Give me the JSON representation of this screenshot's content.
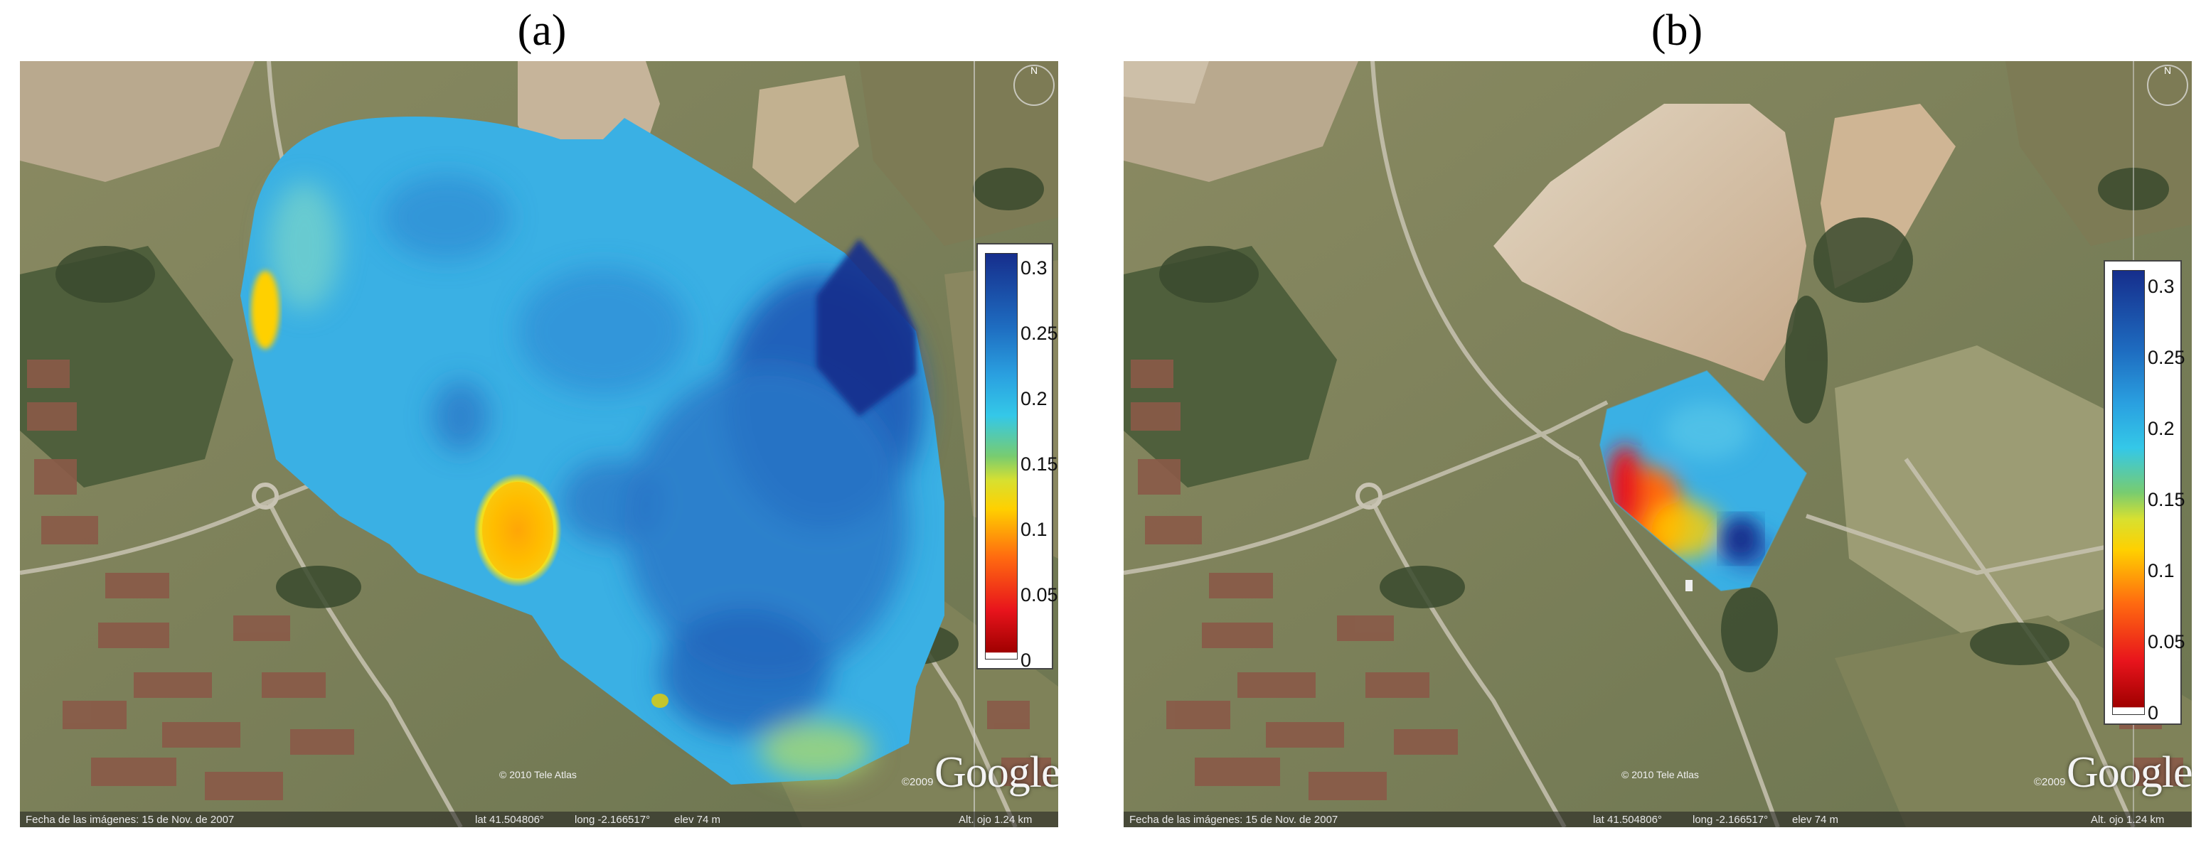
{
  "panels": [
    {
      "label": "(a)",
      "colorbar": {
        "ticks": [
          "0.3",
          "0.25",
          "0.2",
          "0.15",
          "0.1",
          "0.05",
          "0"
        ],
        "max": 0.33,
        "min": 0
      },
      "copyright_teleatlas": "© 2010 Tele Atlas",
      "google_year": "©2009",
      "google_logo": "Google",
      "status": {
        "image_date": "Fecha de las imágenes: 15 de Nov. de 2007",
        "lat": "lat  41.504806°",
        "long": "long  -2.166517°",
        "elev": "elev   74 m",
        "eye_alt": "Alt. ojo   1.24 km"
      },
      "compass_icon": "north-compass-icon"
    },
    {
      "label": "(b)",
      "colorbar": {
        "ticks": [
          "0.3",
          "0.25",
          "0.2",
          "0.15",
          "0.1",
          "0.05",
          "0"
        ],
        "max": 0.33,
        "min": 0
      },
      "copyright_teleatlas": "© 2010 Tele Atlas",
      "google_year": "©2009",
      "google_logo": "Google",
      "status": {
        "image_date": "Fecha de las imágenes: 15 de Nov. de 2007",
        "lat": "lat  41.504806°",
        "long": "long  -2.166517°",
        "elev": "elev   74 m",
        "eye_alt": "Alt. ojo   1.24 km"
      },
      "compass_icon": "north-compass-icon"
    }
  ],
  "colors": {
    "low": "#a00000",
    "mid_low": "#ffd000",
    "mid": "#34c8e8",
    "high": "#162e8c"
  }
}
